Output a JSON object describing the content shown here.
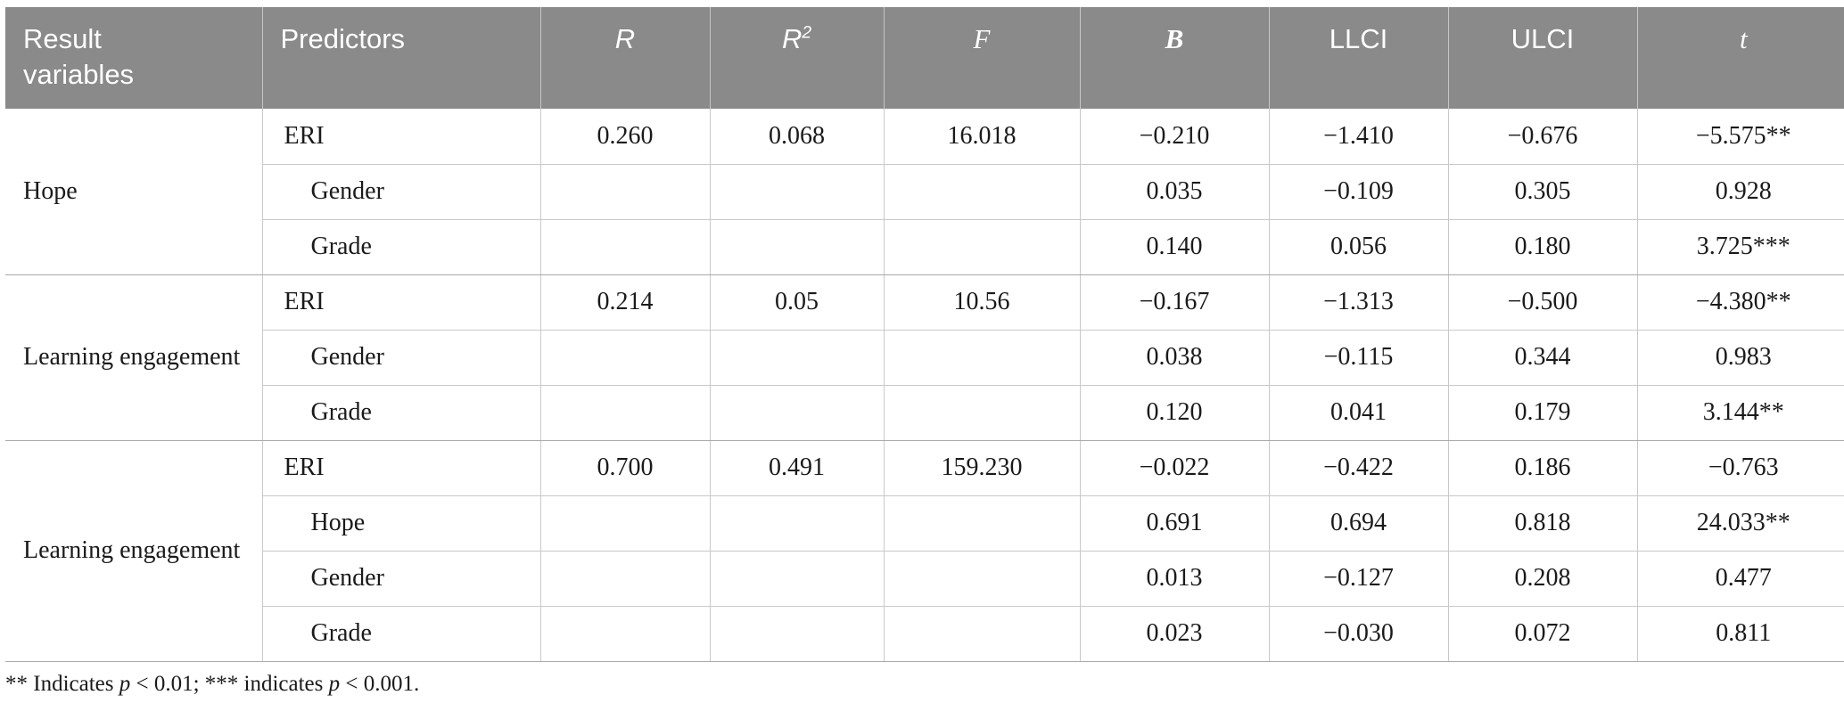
{
  "header": {
    "result_variables": "Result\nvariables",
    "predictors": "Predictors",
    "r": "R",
    "r2_base": "R",
    "r2_sup": "2",
    "f": "F",
    "b": "B",
    "llci": "LLCI",
    "ulci": "ULCI",
    "t": "t"
  },
  "groups": [
    {
      "result_variable": "Hope",
      "rows": [
        {
          "predictor": "ERI",
          "indent": false,
          "r": "0.260",
          "r2": "0.068",
          "f": "16.018",
          "b": "−0.210",
          "llci": "−1.410",
          "ulci": "−0.676",
          "t": "−5.575**"
        },
        {
          "predictor": "Gender",
          "indent": true,
          "r": "",
          "r2": "",
          "f": "",
          "b": "0.035",
          "llci": "−0.109",
          "ulci": "0.305",
          "t": "0.928"
        },
        {
          "predictor": "Grade",
          "indent": true,
          "r": "",
          "r2": "",
          "f": "",
          "b": "0.140",
          "llci": "0.056",
          "ulci": "0.180",
          "t": "3.725***"
        }
      ]
    },
    {
      "result_variable": "Learning engagement",
      "rows": [
        {
          "predictor": "ERI",
          "indent": false,
          "r": "0.214",
          "r2": "0.05",
          "f": "10.56",
          "b": "−0.167",
          "llci": "−1.313",
          "ulci": "−0.500",
          "t": "−4.380**"
        },
        {
          "predictor": "Gender",
          "indent": true,
          "r": "",
          "r2": "",
          "f": "",
          "b": "0.038",
          "llci": "−0.115",
          "ulci": "0.344",
          "t": "0.983"
        },
        {
          "predictor": "Grade",
          "indent": true,
          "r": "",
          "r2": "",
          "f": "",
          "b": "0.120",
          "llci": "0.041",
          "ulci": "0.179",
          "t": "3.144**"
        }
      ]
    },
    {
      "result_variable": "Learning engagement",
      "rows": [
        {
          "predictor": "ERI",
          "indent": false,
          "r": "0.700",
          "r2": "0.491",
          "f": "159.230",
          "b": "−0.022",
          "llci": "−0.422",
          "ulci": "0.186",
          "t": "−0.763"
        },
        {
          "predictor": "Hope",
          "indent": true,
          "r": "",
          "r2": "",
          "f": "",
          "b": "0.691",
          "llci": "0.694",
          "ulci": "0.818",
          "t": "24.033**"
        },
        {
          "predictor": "Gender",
          "indent": true,
          "r": "",
          "r2": "",
          "f": "",
          "b": "0.013",
          "llci": "−0.127",
          "ulci": "0.208",
          "t": "0.477"
        },
        {
          "predictor": "Grade",
          "indent": true,
          "r": "",
          "r2": "",
          "f": "",
          "b": "0.023",
          "llci": "−0.030",
          "ulci": "0.072",
          "t": "0.811"
        }
      ]
    }
  ],
  "footnote": {
    "seg1": "** Indicates ",
    "p1": "p",
    "seg2": " < 0.01; *** indicates ",
    "p2": "p",
    "seg3": " < 0.001."
  },
  "colors": {
    "header_bg": "#8a8a8a",
    "header_text": "#ffffff",
    "row_line": "#c9c9c9",
    "group_line": "#a9a9a9"
  }
}
